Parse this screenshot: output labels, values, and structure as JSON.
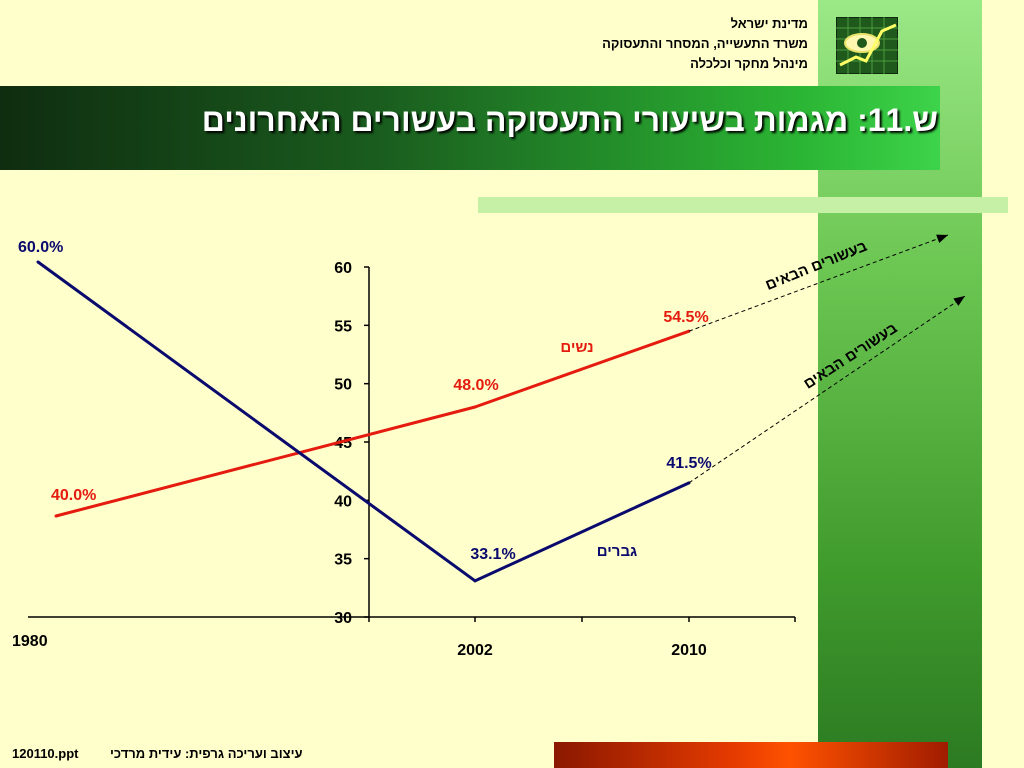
{
  "header": {
    "org_lines": [
      "מדינת ישראל",
      "משרד התעשייה, המסחר והתעסוקה",
      "מינהל מחקר וכלכלה"
    ],
    "title": "ש.11: מגמות בשיעורי התעסוקה בעשורים האחרונים"
  },
  "footer": {
    "credit": "עיצוב ועריכה גרפית: עידית מרדכי",
    "file": "120110.ppt"
  },
  "colors": {
    "women": "#E41B0E",
    "men": "#0A0A6E",
    "background": "#FFFFCC"
  },
  "chart_data": {
    "type": "line",
    "x": [
      "1980",
      "2002",
      "2010"
    ],
    "y_ticks": [
      30,
      35,
      40,
      45,
      50,
      55,
      60
    ],
    "ylim": [
      30,
      60
    ],
    "grid": false,
    "series": [
      {
        "name": "נשים",
        "values": [
          40.0,
          48.0,
          54.5
        ],
        "labels": [
          "40.0%",
          "48.0%",
          "54.5%"
        ],
        "projection_label": "בעשורים הבאים"
      },
      {
        "name": "גברים",
        "values": [
          60.0,
          33.1,
          41.5
        ],
        "labels": [
          "60.0%",
          "33.1%",
          "41.5%"
        ],
        "projection_label": "בעשורים הבאים"
      }
    ]
  }
}
